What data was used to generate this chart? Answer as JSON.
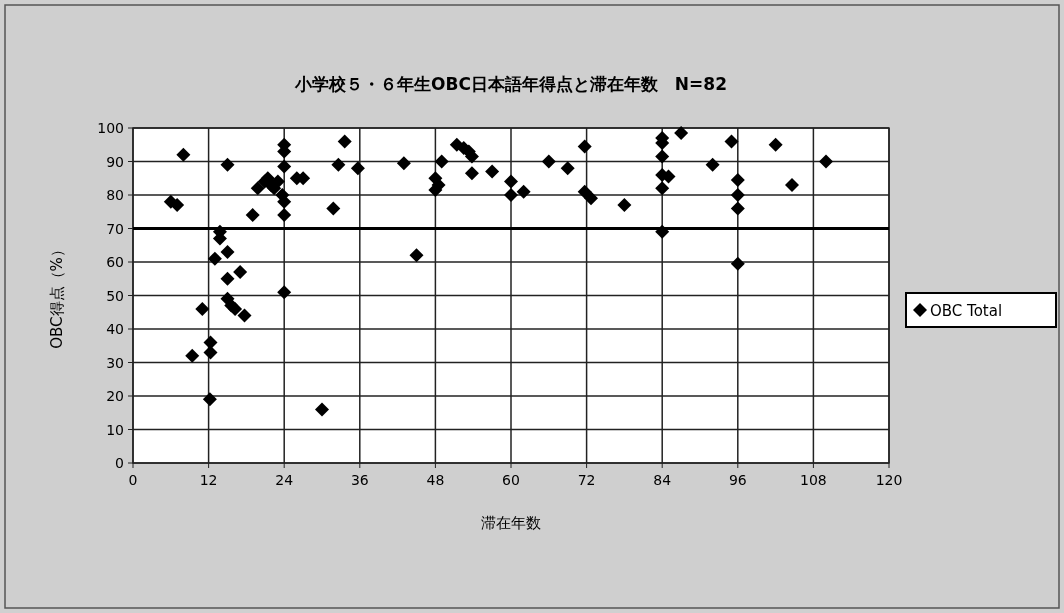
{
  "chart_data": {
    "type": "scatter",
    "title": "小学校５・６年生OBC日本語年得点と滞在年数　N=82",
    "xlabel": "滞在年数",
    "ylabel": "OBC得点（%）",
    "xlim": [
      0,
      120
    ],
    "xticks": [
      0,
      12,
      24,
      36,
      48,
      60,
      72,
      84,
      96,
      108,
      120
    ],
    "ylim": [
      0,
      100
    ],
    "yticks": [
      0,
      10,
      20,
      30,
      40,
      50,
      60,
      70,
      80,
      90,
      100
    ],
    "grid": true,
    "legend": "right",
    "marker": "diamond",
    "ref_lines": [
      {
        "axis": "y",
        "value": 70,
        "color": "#000000"
      }
    ],
    "series": [
      {
        "name": "OBC Total",
        "color": "#000000",
        "x": [
          8,
          6,
          7,
          15,
          19,
          13.8,
          13.8,
          15,
          13,
          17,
          15,
          15,
          15.6,
          16.2,
          17.7,
          11,
          12.3,
          12.3,
          9.4,
          12.2,
          24,
          30,
          19.8,
          20.9,
          21.9,
          21.4,
          22.4,
          23,
          24,
          24,
          24,
          23.7,
          24,
          24,
          26,
          27,
          31.8,
          32.6,
          33.6,
          35.7,
          43,
          45,
          49,
          48,
          48.5,
          48,
          51.4,
          52.5,
          53.3,
          53.8,
          53.8,
          57,
          60,
          60,
          62,
          66,
          69,
          71.7,
          71.7,
          72.7,
          78,
          84,
          84,
          84,
          84,
          85,
          84,
          84,
          87,
          95,
          92,
          96,
          96,
          96,
          96,
          102,
          104.6,
          110
        ],
        "values": [
          92,
          78,
          77,
          89,
          74,
          69,
          67,
          63,
          61,
          57,
          55,
          49,
          47,
          46,
          44,
          46,
          36,
          33,
          32,
          19,
          51,
          16,
          82,
          84,
          83,
          85,
          82,
          84,
          95,
          93,
          88.5,
          80,
          78,
          74,
          85,
          85,
          76,
          89,
          96,
          88,
          89.5,
          62,
          90,
          85,
          83,
          81.5,
          95,
          94,
          93,
          91.5,
          86.5,
          87,
          84,
          80,
          81,
          90,
          88,
          94.5,
          81,
          79,
          77,
          97,
          95.5,
          91.5,
          86,
          85.5,
          82,
          69,
          98.5,
          96,
          89,
          84.5,
          80,
          76,
          59.5,
          95,
          83,
          90
        ]
      }
    ]
  }
}
